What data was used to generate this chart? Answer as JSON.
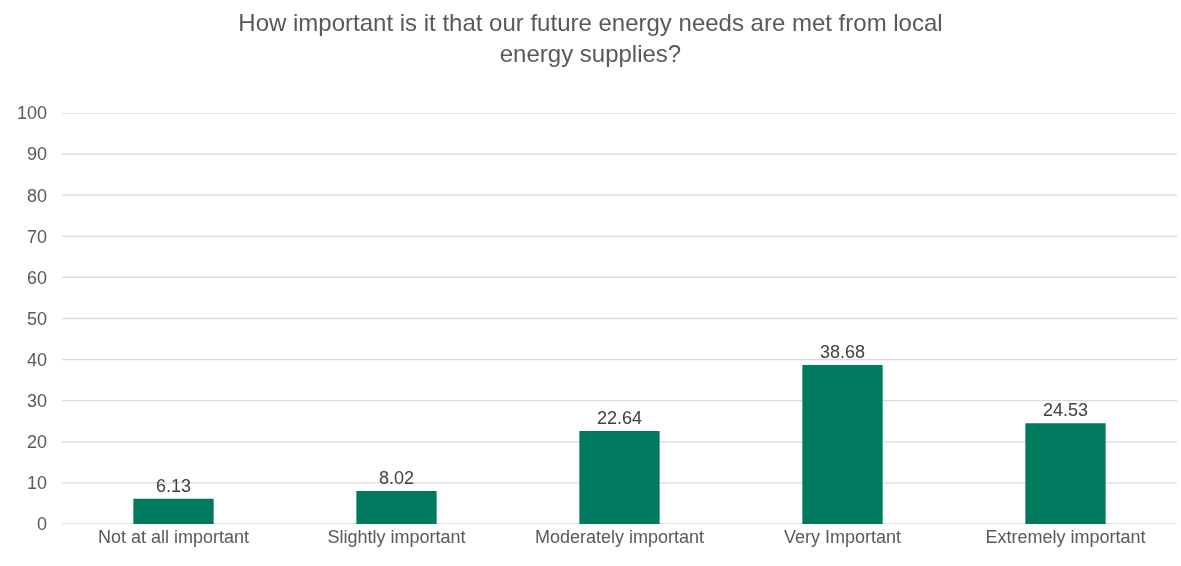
{
  "chart_data": {
    "type": "bar",
    "title": "How important is it that our future energy needs are met from local energy supplies?",
    "categories": [
      "Not at all important",
      "Slightly important",
      "Moderately important",
      "Very Important",
      "Extremely important"
    ],
    "values": [
      6.13,
      8.02,
      22.64,
      38.68,
      24.53
    ],
    "color": "#007a5e",
    "ylim": [
      0,
      100
    ],
    "yticks": [
      0,
      10,
      20,
      30,
      40,
      50,
      60,
      70,
      80,
      90,
      100
    ],
    "grid": "y",
    "data_labels": true
  }
}
